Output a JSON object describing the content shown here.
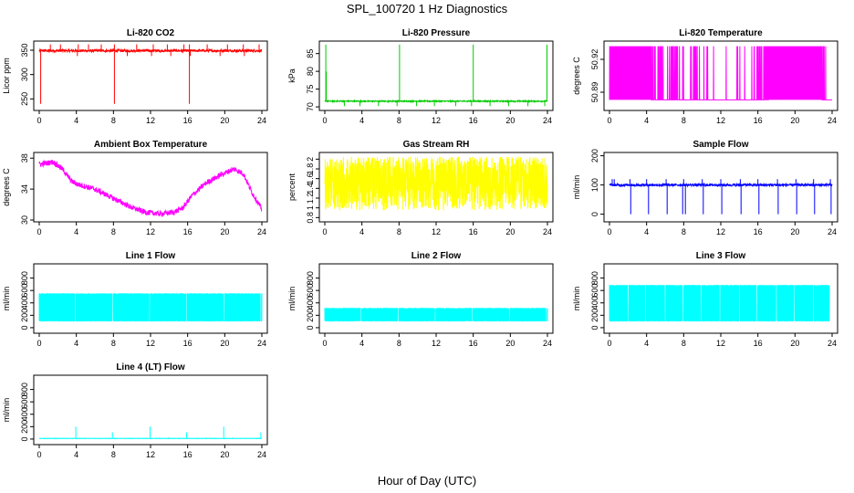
{
  "figure": {
    "title": "SPL_100720  1 Hz Diagnostics",
    "xlabel": "Hour of Day (UTC)"
  },
  "chart_data": [
    {
      "type": "line",
      "title": "Li-820 CO2",
      "ylabel": "Licor ppm",
      "color": "#ff0000",
      "xlim": [
        0,
        24
      ],
      "xticks": [
        0,
        4,
        8,
        12,
        16,
        20,
        24
      ],
      "ylim": [
        230,
        365
      ],
      "yticks": [
        250,
        300,
        350
      ],
      "signal": {
        "kind": "noise",
        "baseline": 349,
        "noise": 2.5,
        "spikes_up": [
          0.2,
          1.2,
          2.3,
          4.2,
          5.3,
          6.7,
          8.1,
          10.5,
          12.3,
          13.8,
          15.6,
          16.2,
          18.1,
          20.3,
          22.0,
          23.7
        ],
        "spike_up_to": 362,
        "dips": [
          0.15,
          8.1,
          16.2
        ],
        "dip_to": 240,
        "small_dips": [
          4.1,
          9.5,
          12.1,
          14.2,
          16.3,
          19.5,
          22.1
        ],
        "small_dip_to": 338
      }
    },
    {
      "type": "line",
      "title": "Li-820 Pressure",
      "ylabel": "kPa",
      "color": "#00cc00",
      "xlim": [
        0,
        24
      ],
      "xticks": [
        0,
        4,
        8,
        12,
        16,
        20,
        24
      ],
      "ylim": [
        69.5,
        88
      ],
      "yticks": [
        70,
        75,
        80,
        85
      ],
      "signal": {
        "kind": "noise",
        "baseline": 71.6,
        "noise": 0.15,
        "spikes_up": [
          0.1,
          8.05,
          16.0,
          23.95
        ],
        "spike_up_to": 87.5,
        "extra_spike": [
          0.15,
          80.0
        ],
        "dips": [
          2.1,
          3.8,
          5.8,
          7.8,
          9.9,
          11.8,
          14.1,
          15.8,
          17.8,
          19.8,
          21.9,
          23.7
        ],
        "dip_to": 70.2
      }
    },
    {
      "type": "line",
      "title": "Li-820 Temperature",
      "ylabel": "degrees C",
      "color": "#ff00ff",
      "xlim": [
        0,
        24
      ],
      "xticks": [
        0,
        4,
        8,
        12,
        16,
        20,
        24
      ],
      "ylim": [
        50.875,
        50.935
      ],
      "yticks": [
        50.89,
        50.92
      ],
      "signal": {
        "kind": "quantized",
        "low": 50.883,
        "high": 50.932,
        "density": [
          [
            0,
            1
          ],
          [
            3.5,
            1
          ],
          [
            4.0,
            0.7
          ],
          [
            9.5,
            0.1
          ],
          [
            15.0,
            0.1
          ],
          [
            16.5,
            0.6
          ],
          [
            17.5,
            1
          ],
          [
            22.5,
            1
          ],
          [
            23.5,
            0.0
          ],
          [
            24,
            0.0
          ]
        ]
      }
    },
    {
      "type": "line",
      "title": "Ambient Box Temperature",
      "ylabel": "degrees C",
      "color": "#ff00ff",
      "xlim": [
        0,
        24
      ],
      "xticks": [
        0,
        4,
        8,
        12,
        16,
        20,
        24
      ],
      "ylim": [
        30,
        38.5
      ],
      "yticks": [
        30,
        34,
        38
      ],
      "signal": {
        "kind": "curve",
        "noise": 0.35,
        "points": [
          [
            0,
            37.2
          ],
          [
            1.5,
            37.5
          ],
          [
            2.5,
            36.6
          ],
          [
            3.5,
            35.0
          ],
          [
            4.2,
            34.6
          ],
          [
            6.0,
            34.0
          ],
          [
            8.0,
            32.8
          ],
          [
            10.0,
            31.6
          ],
          [
            11.5,
            31.0
          ],
          [
            13.0,
            30.8
          ],
          [
            14.5,
            31.0
          ],
          [
            15.5,
            31.6
          ],
          [
            16.5,
            33.2
          ],
          [
            18.0,
            34.8
          ],
          [
            19.5,
            35.8
          ],
          [
            21.0,
            36.6
          ],
          [
            22.0,
            36.0
          ],
          [
            23.0,
            33.4
          ],
          [
            24.0,
            31.4
          ]
        ]
      }
    },
    {
      "type": "line",
      "title": "Gas Stream RH",
      "ylabel": "percent",
      "color": "#ffff00",
      "xlim": [
        0,
        24
      ],
      "xticks": [
        0,
        4,
        8,
        12,
        16,
        20,
        24
      ],
      "ylim": [
        0.75,
        2.1
      ],
      "yticks": [
        0.8,
        1.0,
        1.2,
        1.4,
        1.6,
        1.8,
        2.0
      ],
      "signal": {
        "kind": "band",
        "low": 0.95,
        "high": 2.05,
        "core_low": 1.3,
        "core_high": 1.85
      }
    },
    {
      "type": "line",
      "title": "Sample Flow",
      "ylabel": "ml/min",
      "color": "#0000ff",
      "xlim": [
        0,
        24
      ],
      "xticks": [
        0,
        4,
        8,
        12,
        16,
        20,
        24
      ],
      "ylim": [
        -20,
        205
      ],
      "yticks": [
        0,
        100,
        200
      ],
      "signal": {
        "kind": "noise",
        "baseline": 100,
        "noise": 4,
        "spikes_up": [
          0.3,
          0.5,
          2.2,
          4.0,
          6.1,
          8.0,
          10.0,
          12.0,
          14.1,
          16.0,
          18.1,
          20.1,
          22.0,
          23.8
        ],
        "spike_up_to": 120,
        "dips": [
          2.3,
          4.2,
          6.2,
          7.9,
          8.2,
          10.1,
          12.1,
          14.2,
          16.1,
          18.2,
          20.2,
          22.1,
          23.9
        ],
        "dip_to": 0
      }
    },
    {
      "type": "line",
      "title": "Line 1 Flow",
      "ylabel": "ml/min",
      "color": "#00ffff",
      "xlim": [
        0,
        24
      ],
      "xticks": [
        0,
        4,
        8,
        12,
        16,
        20,
        24
      ],
      "ylim": [
        -60,
        1000
      ],
      "yticks": [
        0,
        200,
        400,
        600,
        800
      ],
      "signal": {
        "kind": "block",
        "low": 100,
        "high": 555,
        "gaps": [
          3.9,
          7.9,
          11.9,
          15.9,
          19.9,
          23.9
        ],
        "end": 24
      }
    },
    {
      "type": "line",
      "title": "Line 2 Flow",
      "ylabel": "ml/min",
      "color": "#00ffff",
      "xlim": [
        0,
        24
      ],
      "xticks": [
        0,
        4,
        8,
        12,
        16,
        20,
        24
      ],
      "ylim": [
        -60,
        1000
      ],
      "yticks": [
        0,
        200,
        400,
        600,
        800
      ],
      "signal": {
        "kind": "block",
        "low": 100,
        "high": 320,
        "gaps": [
          3.9,
          7.9,
          11.9,
          15.9,
          19.9,
          23.9
        ],
        "end": 24
      }
    },
    {
      "type": "line",
      "title": "Line 3 Flow",
      "ylabel": "ml/min",
      "color": "#00ffff",
      "xlim": [
        0,
        24
      ],
      "xticks": [
        0,
        4,
        8,
        12,
        16,
        20,
        24
      ],
      "ylim": [
        -60,
        1000
      ],
      "yticks": [
        0,
        200,
        400,
        600,
        800
      ],
      "signal": {
        "kind": "block",
        "low": 100,
        "high": 690,
        "gaps": [
          2.0,
          3.9,
          6.0,
          7.9,
          9.9,
          11.9,
          14.0,
          15.9,
          18.0,
          19.9,
          22.0
        ],
        "end": 23.7
      }
    },
    {
      "type": "line",
      "title": "Line 4 (LT) Flow",
      "ylabel": "ml/min",
      "color": "#00ffff",
      "xlim": [
        0,
        24
      ],
      "xticks": [
        0,
        4,
        8,
        12,
        16,
        20,
        24
      ],
      "ylim": [
        -60,
        1000
      ],
      "yticks": [
        0,
        200,
        400,
        600,
        800
      ],
      "signal": {
        "kind": "noise",
        "baseline": 10,
        "noise": 3,
        "spikes_up": [
          3.95,
          7.9,
          11.95,
          15.9,
          19.9,
          23.9
        ],
        "spike_heights": [
          200,
          110,
          200,
          110,
          200,
          110
        ],
        "spike_up_to": 200
      }
    }
  ]
}
